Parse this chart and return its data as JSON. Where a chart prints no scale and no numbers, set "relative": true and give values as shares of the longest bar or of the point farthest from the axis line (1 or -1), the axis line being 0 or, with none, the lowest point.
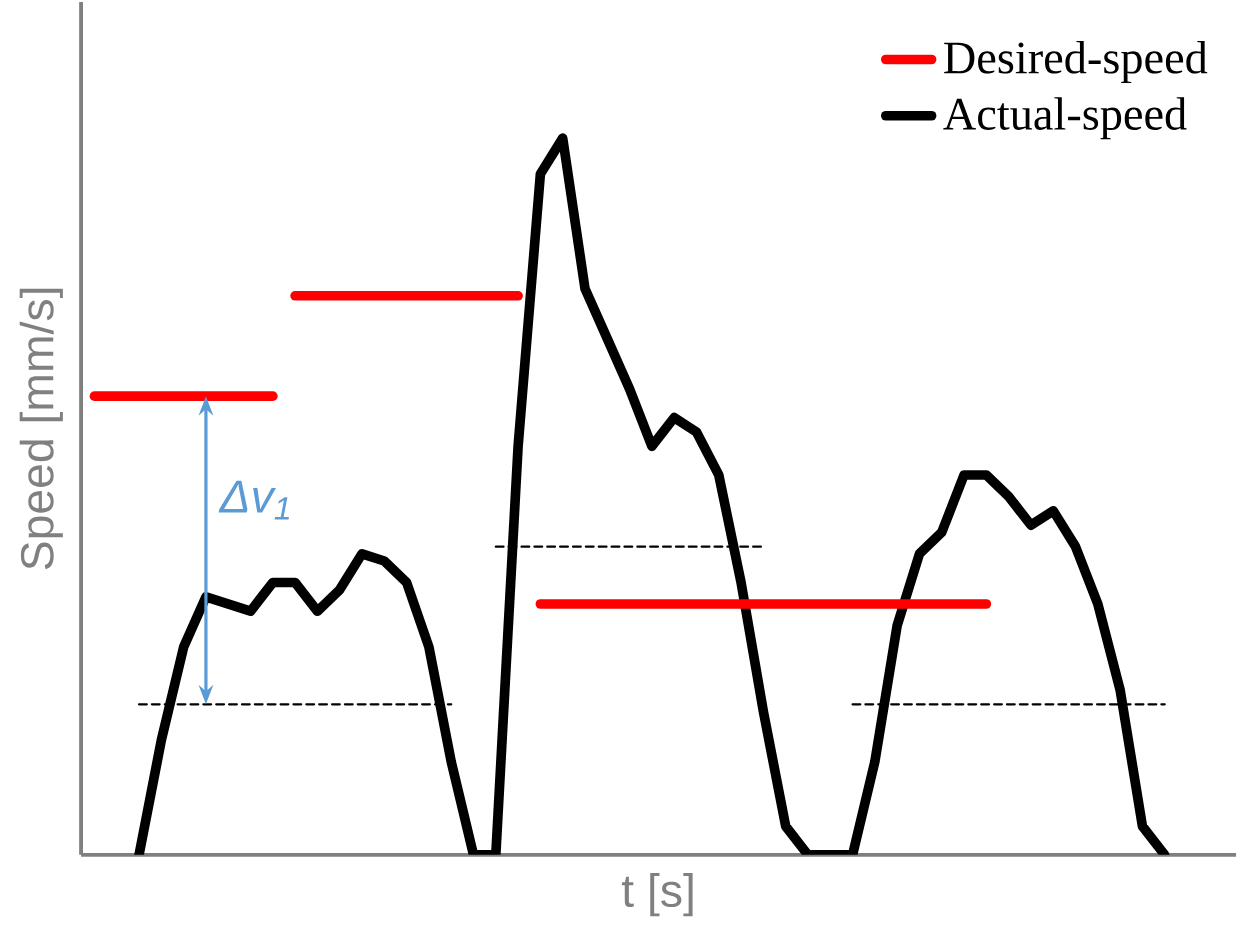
{
  "chart_data": {
    "type": "line",
    "relative": true,
    "xlabel": "t [s]",
    "ylabel": "Speed [mm/s]",
    "legend": "top right",
    "tick_labels": false,
    "annotations": [
      "Δv$_{1}$"
    ],
    "categories": [
      null,
      null,
      null,
      null,
      null,
      null,
      null,
      null,
      null,
      null,
      null,
      null,
      null,
      null,
      null,
      null,
      null,
      null,
      null,
      null,
      null,
      null,
      null,
      null,
      null,
      null,
      null,
      null,
      null,
      null,
      null,
      null,
      null,
      null,
      null,
      null,
      null,
      null,
      null,
      null,
      null,
      null,
      null,
      null,
      null,
      null,
      null,
      null,
      null
    ],
    "series": [
      {
        "name": "Desired-speed",
        "color": "#ff0000",
        "values": [
          0.64,
          0.64,
          0.64,
          0.64,
          0.64,
          0.64,
          0.64,
          0.64,
          0.64,
          null,
          null,
          null,
          null,
          null,
          null,
          null,
          null,
          null,
          null,
          null,
          null,
          null,
          null,
          null,
          null,
          null,
          null,
          null,
          null,
          null,
          null,
          null,
          null,
          null,
          null,
          null,
          null,
          null,
          null,
          null,
          null,
          null,
          null,
          null,
          null,
          null,
          null,
          null,
          null
        ]
      },
      {
        "name": "Actual-speed",
        "color": "#000000",
        "values": [
          null,
          null,
          0,
          0.16,
          0.29,
          0.36,
          0.35,
          0.34,
          0.38,
          0.38,
          0.34,
          0.37,
          0.42,
          0.41,
          0.38,
          0.29,
          0.13,
          0,
          0,
          0.57,
          0.95,
          1.0,
          0.79,
          0.72,
          0.65,
          0.57,
          0.61,
          0.59,
          0.53,
          0.38,
          0.2,
          0.04,
          0,
          0,
          0,
          0.13,
          0.32,
          0.42,
          0.45,
          0.53,
          0.53,
          0.5,
          0.46,
          0.48,
          0.43,
          0.35,
          0.23,
          0.04,
          0
        ]
      },
      {
        "color": "#ff0000",
        "values": [
          null,
          null,
          null,
          null,
          null,
          null,
          null,
          null,
          null,
          0.78,
          0.78,
          0.78,
          0.78,
          0.78,
          0.78,
          0.78,
          0.78,
          0.78,
          0.78,
          0.78,
          null,
          null,
          null,
          null,
          null,
          null,
          null,
          null,
          null,
          null,
          null,
          null,
          null,
          null,
          null,
          null,
          null,
          null,
          null,
          null,
          null,
          null,
          null,
          null,
          null,
          null,
          null,
          null,
          null
        ]
      },
      {
        "color": "#ff0000",
        "values": [
          null,
          null,
          null,
          null,
          null,
          null,
          null,
          null,
          null,
          null,
          null,
          null,
          null,
          null,
          null,
          null,
          null,
          null,
          null,
          null,
          0.35,
          0.35,
          0.35,
          0.35,
          0.35,
          0.35,
          0.35,
          0.35,
          0.35,
          0.35,
          0.35,
          0.35,
          0.35,
          0.35,
          0.35,
          0.35,
          0.35,
          0.35,
          0.35,
          0.35,
          0.35,
          null,
          null,
          null,
          null,
          null,
          null,
          null,
          null
        ]
      },
      {
        "color": "#000000",
        "line_style": "dashed",
        "values": [
          null,
          null,
          0.21,
          0.21,
          0.21,
          0.21,
          0.21,
          0.21,
          0.21,
          0.21,
          0.21,
          0.21,
          0.21,
          0.21,
          0.21,
          0.21,
          0.21,
          null,
          null,
          null,
          null,
          null,
          null,
          null,
          null,
          null,
          null,
          null,
          null,
          null,
          null,
          null,
          null,
          null,
          null,
          null,
          null,
          null,
          null,
          null,
          null,
          null,
          null,
          null,
          null,
          null,
          null,
          null,
          null
        ]
      },
      {
        "color": "#000000",
        "line_style": "dashed",
        "values": [
          null,
          null,
          null,
          null,
          null,
          null,
          null,
          null,
          null,
          null,
          null,
          null,
          null,
          null,
          null,
          null,
          null,
          null,
          0.43,
          0.43,
          0.43,
          0.43,
          0.43,
          0.43,
          0.43,
          0.43,
          0.43,
          0.43,
          0.43,
          0.43,
          0.43,
          null,
          null,
          null,
          null,
          null,
          null,
          null,
          null,
          null,
          null,
          null,
          null,
          null,
          null,
          null,
          null,
          null,
          null
        ]
      },
      {
        "color": "#000000",
        "line_style": "dashed",
        "values": [
          null,
          null,
          null,
          null,
          null,
          null,
          null,
          null,
          null,
          null,
          null,
          null,
          null,
          null,
          null,
          null,
          null,
          null,
          null,
          null,
          null,
          null,
          null,
          null,
          null,
          null,
          null,
          null,
          null,
          null,
          null,
          null,
          null,
          null,
          0.21,
          0.21,
          0.21,
          0.21,
          0.21,
          0.21,
          0.21,
          0.21,
          0.21,
          0.21,
          0.21,
          0.21,
          0.21,
          0.21,
          0.21
        ]
      }
    ]
  }
}
